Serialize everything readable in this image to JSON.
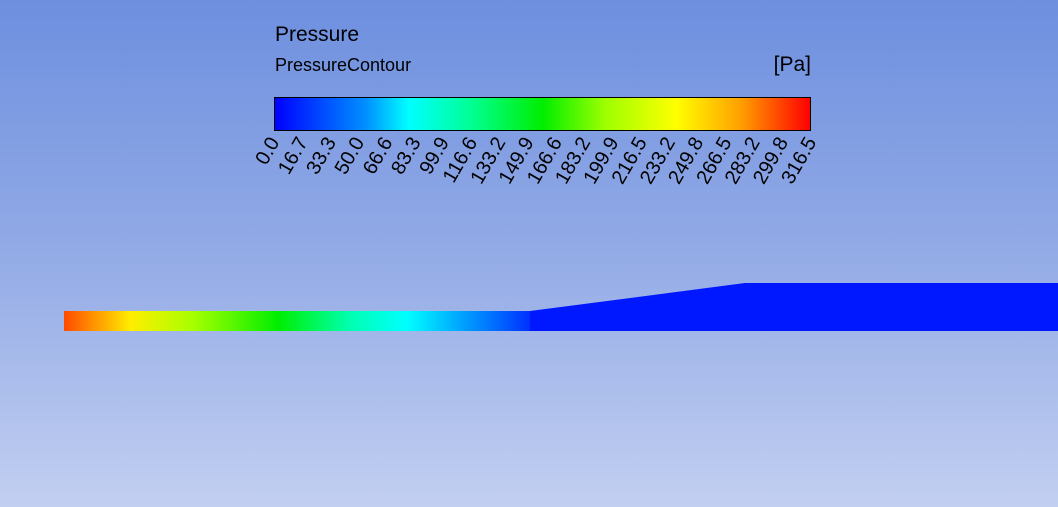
{
  "legend": {
    "title": "Pressure",
    "subtitle": "PressureContour",
    "unit": "[Pa]",
    "ticks": [
      "0.0",
      "16.7",
      "33.3",
      "50.0",
      "66.6",
      "83.3",
      "99.9",
      "116.6",
      "133.2",
      "149.9",
      "166.6",
      "183.2",
      "199.9",
      "216.5",
      "233.2",
      "249.8",
      "266.5",
      "283.2",
      "299.8",
      "316.5"
    ],
    "colors": [
      "#0000ff",
      "#0090ff",
      "#00ffff",
      "#00ff90",
      "#00ee00",
      "#a0ff00",
      "#ffff00",
      "#ffa000",
      "#ff0000"
    ]
  },
  "background": {
    "top_color": "#6d8fdf",
    "bottom_color": "#c2cff1"
  }
}
